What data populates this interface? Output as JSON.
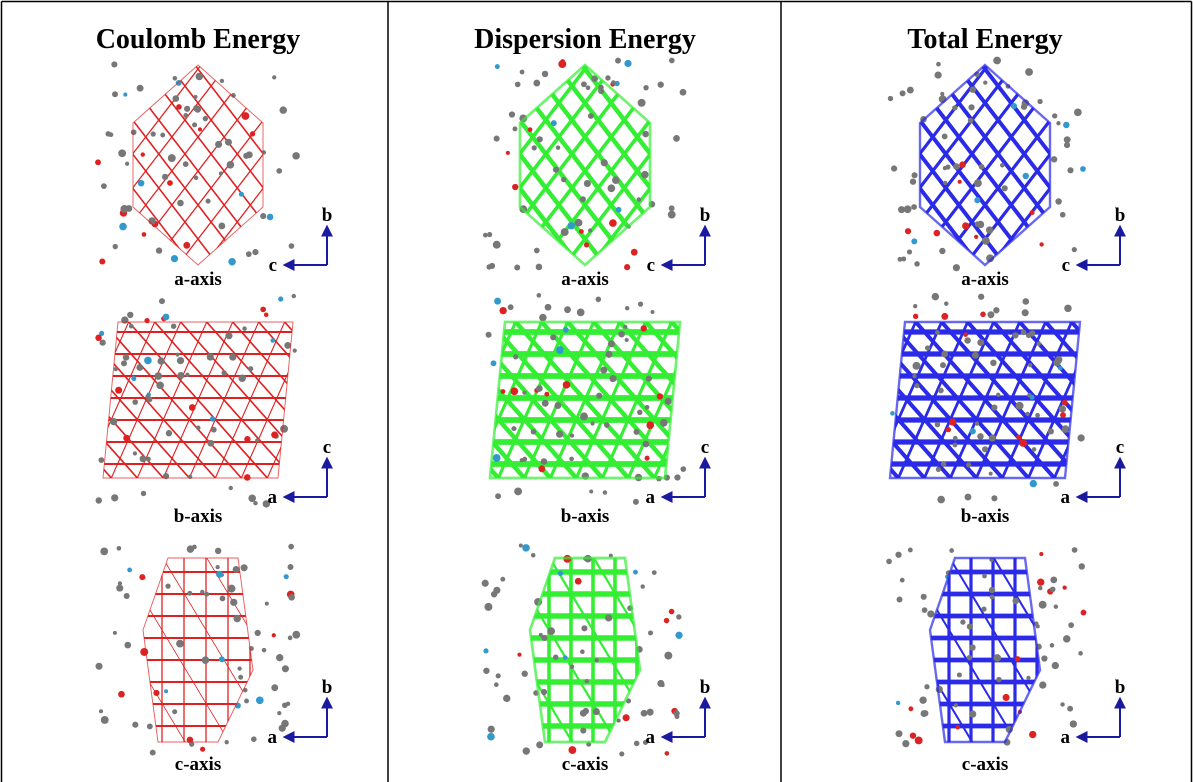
{
  "columns": [
    {
      "title": "Coulomb Energy",
      "panels": [
        {
          "label": "a-axis",
          "horizontal": "c",
          "vertical": "b"
        },
        {
          "label": "b-axis",
          "horizontal": "a",
          "vertical": "c"
        },
        {
          "label": "c-axis",
          "horizontal": "a",
          "vertical": "b"
        }
      ]
    },
    {
      "title": "Dispersion Energy",
      "panels": [
        {
          "label": "a-axis",
          "horizontal": "c",
          "vertical": "b"
        },
        {
          "label": "b-axis",
          "horizontal": "a",
          "vertical": "c"
        },
        {
          "label": "c-axis",
          "horizontal": "a",
          "vertical": "b"
        }
      ]
    },
    {
      "title": "Total Energy",
      "panels": [
        {
          "label": "a-axis",
          "horizontal": "c",
          "vertical": "b"
        },
        {
          "label": "b-axis",
          "horizontal": "a",
          "vertical": "c"
        },
        {
          "label": "c-axis",
          "horizontal": "a",
          "vertical": "b"
        }
      ]
    }
  ]
}
